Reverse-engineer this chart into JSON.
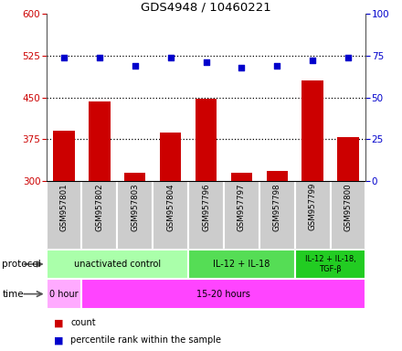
{
  "title": "GDS4948 / 10460221",
  "samples": [
    "GSM957801",
    "GSM957802",
    "GSM957803",
    "GSM957804",
    "GSM957796",
    "GSM957797",
    "GSM957798",
    "GSM957799",
    "GSM957800"
  ],
  "counts": [
    390,
    443,
    315,
    387,
    447,
    315,
    318,
    480,
    378
  ],
  "percentile_ranks": [
    74,
    74,
    69,
    74,
    71,
    68,
    69,
    72,
    74
  ],
  "ylim_left": [
    300,
    600
  ],
  "ylim_right": [
    0,
    100
  ],
  "yticks_left": [
    300,
    375,
    450,
    525,
    600
  ],
  "yticks_right": [
    0,
    25,
    50,
    75,
    100
  ],
  "bar_color": "#cc0000",
  "dot_color": "#0000cc",
  "hline_y_left": [
    375,
    450,
    525
  ],
  "protocol_groups": [
    {
      "label": "unactivated control",
      "start": 0,
      "end": 4,
      "color": "#aaffaa"
    },
    {
      "label": "IL-12 + IL-18",
      "start": 4,
      "end": 7,
      "color": "#55dd55"
    },
    {
      "label": "IL-12 + IL-18,\nTGF-β",
      "start": 7,
      "end": 9,
      "color": "#22cc22"
    }
  ],
  "time_groups": [
    {
      "label": "0 hour",
      "start": 0,
      "end": 1,
      "color": "#ffaaff"
    },
    {
      "label": "15-20 hours",
      "start": 1,
      "end": 9,
      "color": "#ff44ff"
    }
  ],
  "left_axis_color": "#cc0000",
  "right_axis_color": "#0000cc",
  "background_color": "#ffffff",
  "sample_bg_color": "#cccccc",
  "sample_edge_color": "#999999"
}
